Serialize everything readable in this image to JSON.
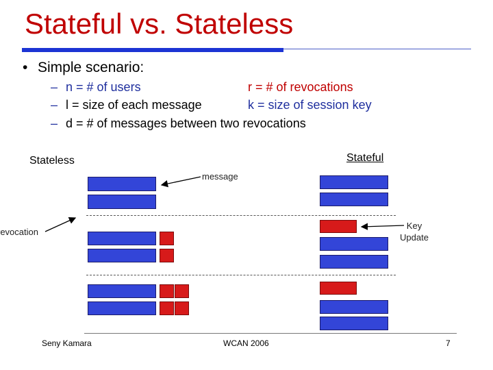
{
  "slide": {
    "title": "Stateful vs. Stateless",
    "bullet": "Simple scenario:",
    "bullet_marker": "•",
    "dash_marker": "–",
    "sub_items": [
      "n = # of users",
      "r = # of revocations",
      "l = size of each message",
      "k = size of session key",
      "d = # of messages between two revocations"
    ]
  },
  "diagram": {
    "stateless_label": "Stateless",
    "stateful_label": "Stateful",
    "message_label": "message",
    "revocation_label": "revocation",
    "key_update_label": [
      "Key",
      "Update"
    ]
  },
  "footer": {
    "author": "Seny Kamara",
    "venue": "WCAN 2006",
    "page": "7"
  },
  "colors": {
    "title": "#c00000",
    "accent_blue": "#1c34d4",
    "message_block": "#3345d8",
    "key_block": "#d71a1a"
  }
}
